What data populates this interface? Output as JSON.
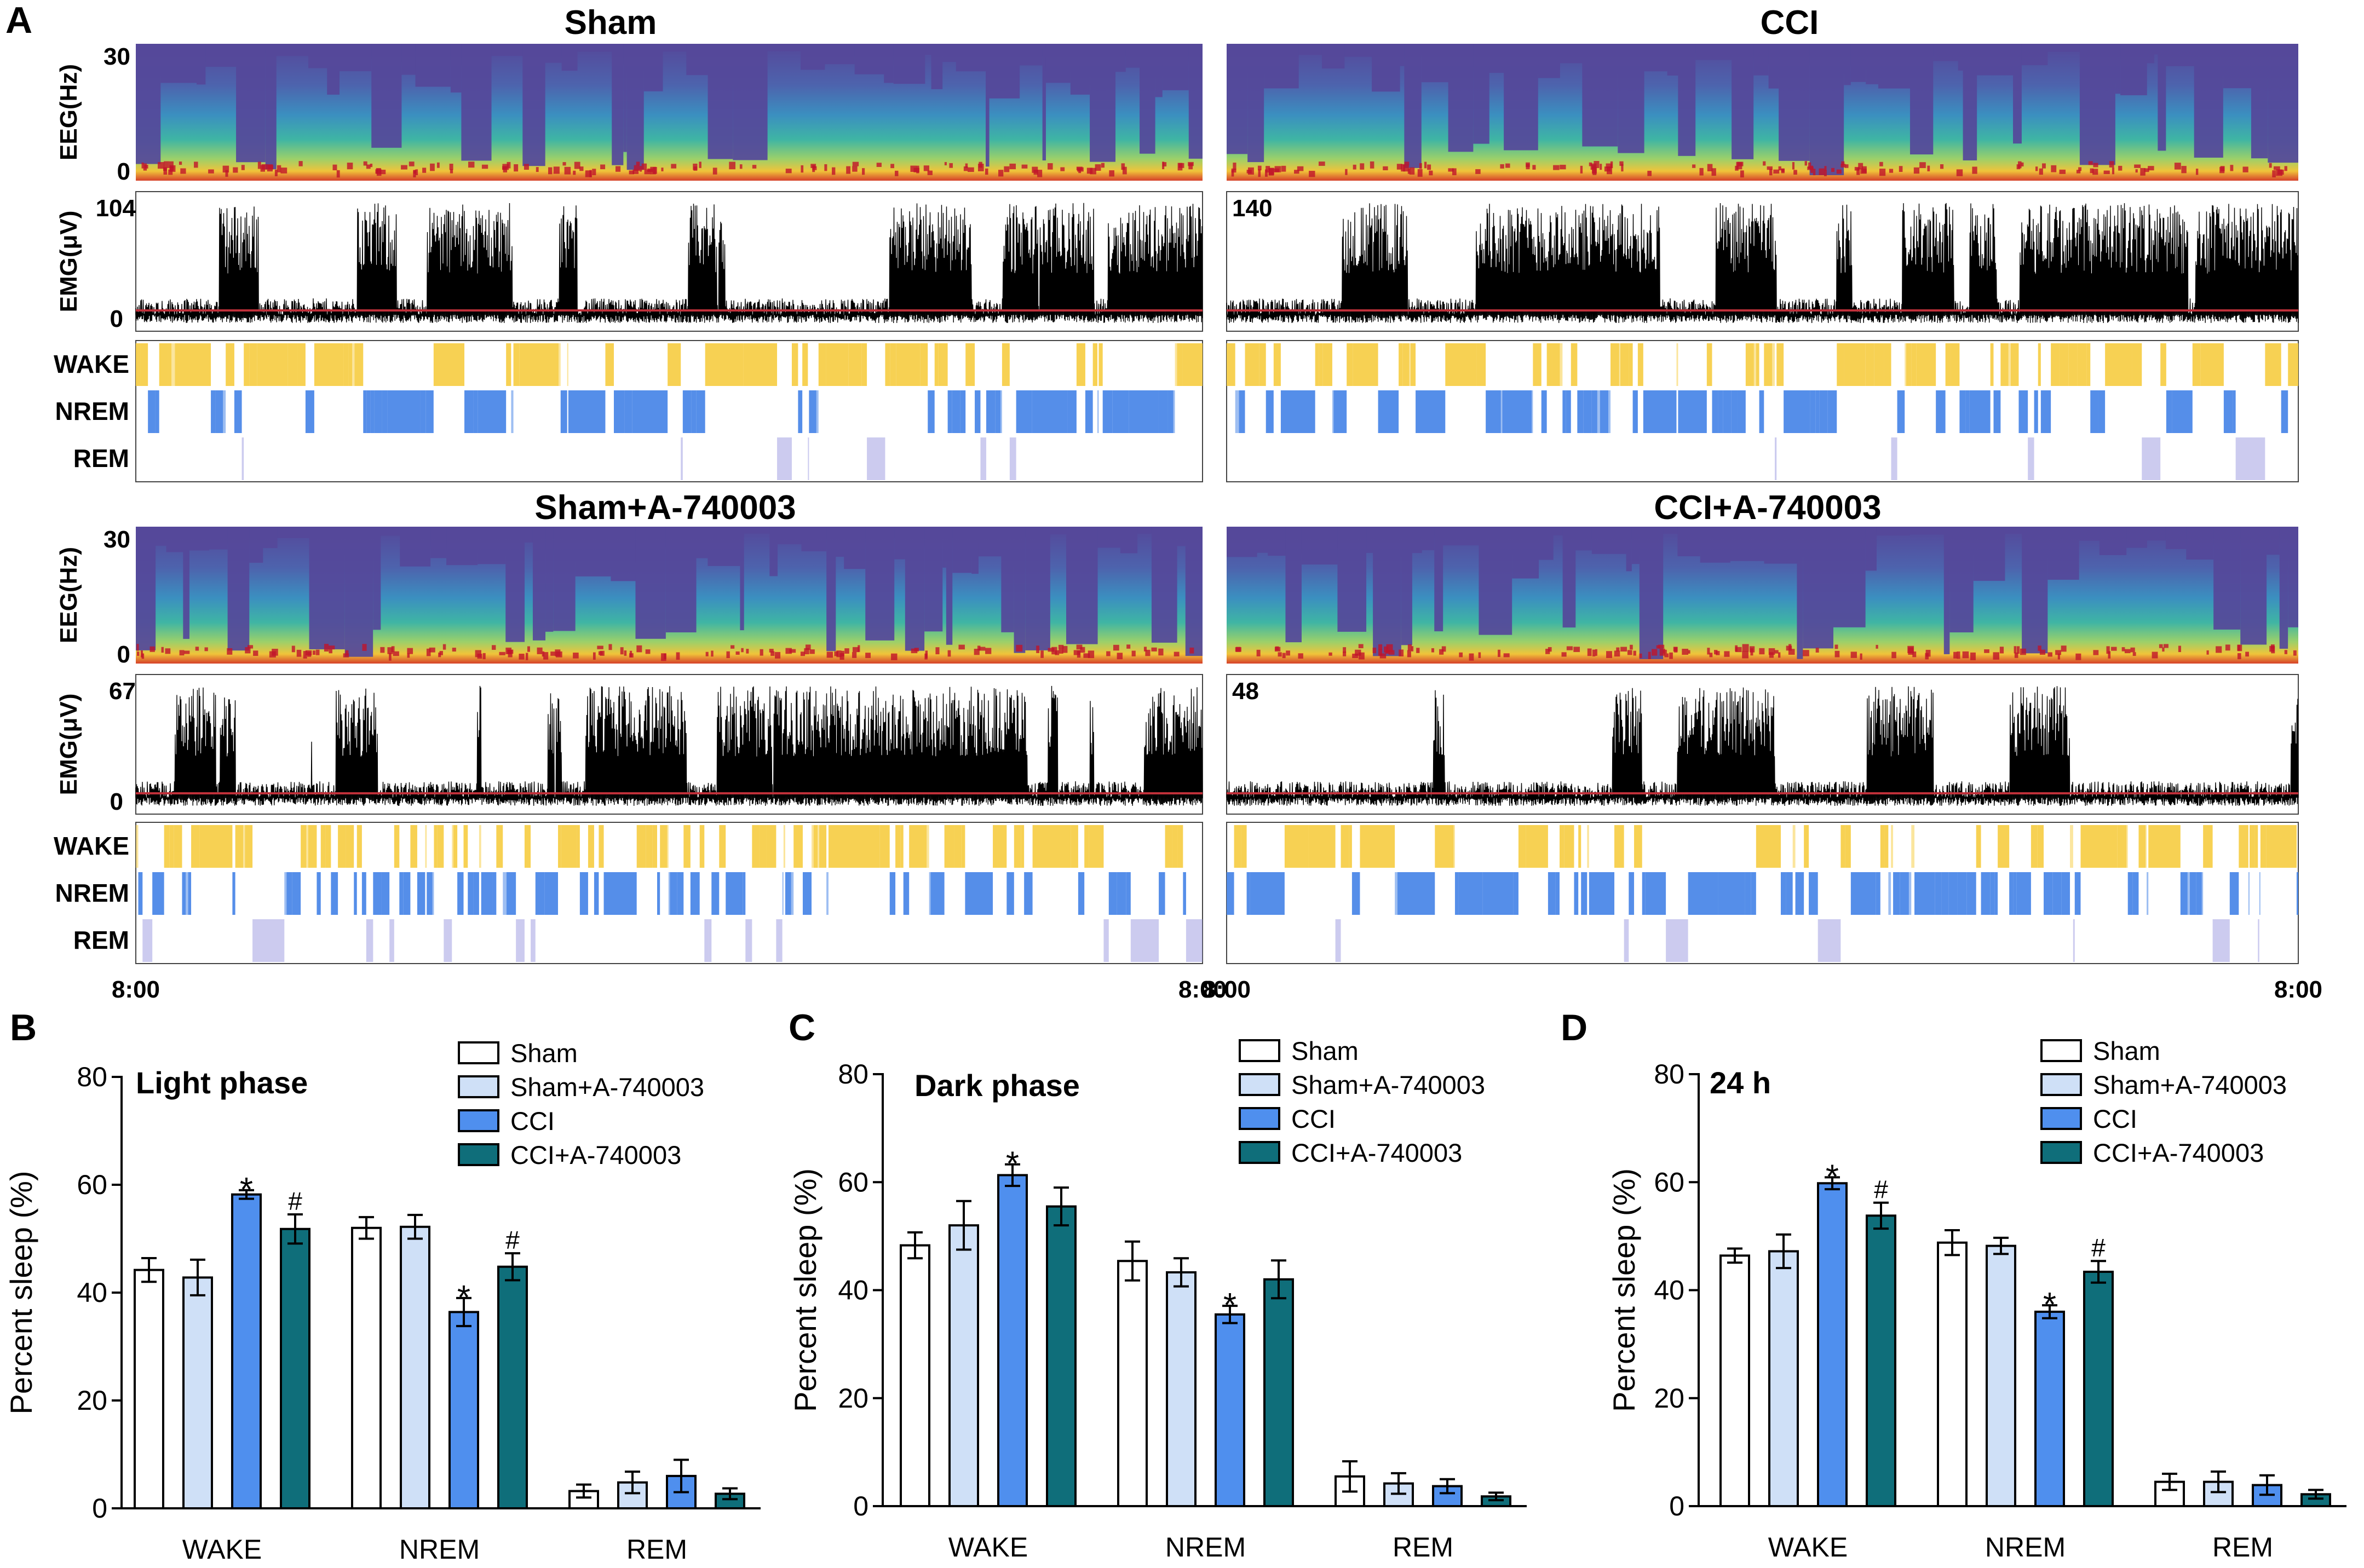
{
  "panel_labels": {
    "A": "A",
    "B": "B",
    "C": "C",
    "D": "D"
  },
  "colors": {
    "Sham": "#ffffff",
    "Sham+A-740003": "#cfe0f7",
    "CCI": "#4f8fee",
    "CCI+A-740003": "#0f6e7a",
    "wake": "#f7cf4a",
    "nrem": "#4c88e8",
    "rem": "#9a98e0",
    "emg_baseline": "#c0303a"
  },
  "panel_a": {
    "groups": [
      {
        "title": "Sham",
        "eeg_label": "EEG(Hz)",
        "eeg_top": "30",
        "eeg_bottom": "0",
        "emg_label": "EMG(μV)",
        "emg_max": "104",
        "emg_min": "0"
      },
      {
        "title": "CCI",
        "eeg_label": "",
        "eeg_top": "",
        "eeg_bottom": "",
        "emg_label": "",
        "emg_max": "140",
        "emg_min": ""
      },
      {
        "title": "Sham+A-740003",
        "eeg_label": "EEG(Hz)",
        "eeg_top": "30",
        "eeg_bottom": "0",
        "emg_label": "EMG(μV)",
        "emg_max": "67",
        "emg_min": "0"
      },
      {
        "title": "CCI+A-740003",
        "eeg_label": "",
        "eeg_top": "",
        "eeg_bottom": "",
        "emg_label": "",
        "emg_max": "48",
        "emg_min": ""
      }
    ],
    "states": [
      "WAKE",
      "NREM",
      "REM"
    ],
    "time_start": "8:00",
    "time_end": "8:00"
  },
  "chart_data": [
    {
      "type": "bar",
      "panel": "B",
      "title": "Light phase",
      "categories": [
        "WAKE",
        "NREM",
        "REM"
      ],
      "series": [
        {
          "name": "Sham",
          "values": [
            44.2,
            52.0,
            3.2
          ],
          "errors": [
            2.2,
            2.0,
            1.2
          ]
        },
        {
          "name": "Sham+A-740003",
          "values": [
            42.8,
            52.2,
            4.8
          ],
          "errors": [
            3.3,
            2.2,
            2.0
          ]
        },
        {
          "name": "CCI",
          "values": [
            58.2,
            36.4,
            6.0
          ],
          "errors": [
            0.8,
            2.6,
            3.0
          ]
        },
        {
          "name": "CCI+A-740003",
          "values": [
            51.8,
            44.8,
            2.7
          ],
          "errors": [
            2.7,
            2.5,
            1.0
          ]
        }
      ],
      "marks": [
        {
          "category": "WAKE",
          "series": "CCI",
          "symbol": "*"
        },
        {
          "category": "WAKE",
          "series": "CCI+A-740003",
          "symbol": "#"
        },
        {
          "category": "NREM",
          "series": "CCI",
          "symbol": "*"
        },
        {
          "category": "NREM",
          "series": "CCI+A-740003",
          "symbol": "#"
        }
      ],
      "ylabel": "Percent sleep (%)",
      "ylim": [
        0,
        80
      ],
      "yticks": [
        0,
        20,
        40,
        60,
        80
      ]
    },
    {
      "type": "bar",
      "panel": "C",
      "title": "Dark phase",
      "categories": [
        "WAKE",
        "NREM",
        "REM"
      ],
      "series": [
        {
          "name": "Sham",
          "values": [
            48.3,
            45.4,
            5.5
          ],
          "errors": [
            2.4,
            3.6,
            2.8
          ]
        },
        {
          "name": "Sham+A-740003",
          "values": [
            52.0,
            43.3,
            4.2
          ],
          "errors": [
            4.5,
            2.6,
            1.9
          ]
        },
        {
          "name": "CCI",
          "values": [
            61.3,
            35.5,
            3.7
          ],
          "errors": [
            2.0,
            1.6,
            1.3
          ]
        },
        {
          "name": "CCI+A-740003",
          "values": [
            55.5,
            42.0,
            1.8
          ],
          "errors": [
            3.5,
            3.5,
            0.7
          ]
        }
      ],
      "marks": [
        {
          "category": "WAKE",
          "series": "CCI",
          "symbol": "*"
        },
        {
          "category": "NREM",
          "series": "CCI",
          "symbol": "*"
        }
      ],
      "ylabel": "Percent sleep (%)",
      "ylim": [
        0,
        80
      ],
      "yticks": [
        0,
        20,
        40,
        60,
        80
      ]
    },
    {
      "type": "bar",
      "panel": "D",
      "title": "24 h",
      "categories": [
        "WAKE",
        "NREM",
        "REM"
      ],
      "series": [
        {
          "name": "Sham",
          "values": [
            46.4,
            48.8,
            4.5
          ],
          "errors": [
            1.3,
            2.3,
            1.5
          ]
        },
        {
          "name": "Sham+A-740003",
          "values": [
            47.2,
            48.2,
            4.5
          ],
          "errors": [
            3.1,
            1.5,
            1.9
          ]
        },
        {
          "name": "CCI",
          "values": [
            59.8,
            36.0,
            3.9
          ],
          "errors": [
            1.1,
            1.2,
            1.8
          ]
        },
        {
          "name": "CCI+A-740003",
          "values": [
            53.8,
            43.4,
            2.2
          ],
          "errors": [
            2.4,
            2.0,
            0.8
          ]
        }
      ],
      "marks": [
        {
          "category": "WAKE",
          "series": "CCI",
          "symbol": "*"
        },
        {
          "category": "WAKE",
          "series": "CCI+A-740003",
          "symbol": "#"
        },
        {
          "category": "NREM",
          "series": "CCI",
          "symbol": "*"
        },
        {
          "category": "NREM",
          "series": "CCI+A-740003",
          "symbol": "#"
        }
      ],
      "ylabel": "Percent sleep (%)",
      "ylim": [
        0,
        80
      ],
      "yticks": [
        0,
        20,
        40,
        60,
        80
      ]
    }
  ]
}
